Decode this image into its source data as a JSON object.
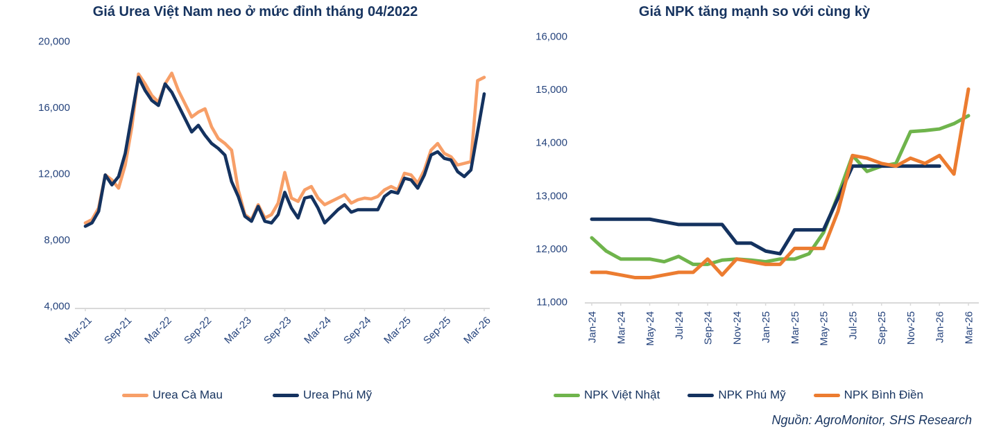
{
  "page": {
    "source_note": "Nguồn: AgroMonitor, SHS Research"
  },
  "colors": {
    "navy": "#14325F",
    "salmon": "#F79F68",
    "orange": "#EC7C30",
    "green": "#6FB44C",
    "axis_line": "#D9D9D9",
    "title_text": "#16335F",
    "axis_text": "#25437C"
  },
  "chart_data": [
    {
      "type": "line",
      "title": "Giá Urea Việt Nam neo ở mức đỉnh tháng 04/2022",
      "x_axis": {
        "start": "Mar-21",
        "end": "Mar-26",
        "frequency": "monthly"
      },
      "x_tick_labels": [
        "Mar-21",
        "Sep-21",
        "Mar-22",
        "Sep-22",
        "Mar-23",
        "Sep-23",
        "Mar-24",
        "Sep-24",
        "Mar-25",
        "Sep-25",
        "Mar-26"
      ],
      "tick_every_months": 6,
      "ylim": [
        4000,
        20000
      ],
      "ytick_step": 4000,
      "ytick_labels": [
        "20,000",
        "16,000",
        "12,000",
        "8,000",
        "4,000"
      ],
      "grid": false,
      "legend_position": "bottom",
      "series": [
        {
          "name": "Urea Cà Mau",
          "color_key": "salmon",
          "values": [
            9000,
            9200,
            9900,
            11900,
            11600,
            11100,
            12500,
            14800,
            18000,
            17400,
            16700,
            16300,
            17400,
            18050,
            17000,
            16200,
            15400,
            15700,
            15900,
            14800,
            14100,
            13800,
            13400,
            11000,
            9500,
            9200,
            10100,
            9300,
            9500,
            10200,
            12050,
            10500,
            10300,
            11000,
            11200,
            10500,
            10100,
            10300,
            10500,
            10700,
            10200,
            10400,
            10500,
            10450,
            10600,
            11000,
            11200,
            11000,
            12000,
            11900,
            11400,
            12200,
            13400,
            13800,
            13200,
            13000,
            12500,
            12600,
            12700,
            17600,
            17800
          ]
        },
        {
          "name": "Urea Phú Mỹ",
          "color_key": "navy",
          "values": [
            8800,
            9000,
            9700,
            11900,
            11300,
            11800,
            13200,
            15500,
            17800,
            17000,
            16400,
            16100,
            17400,
            16900,
            16100,
            15300,
            14500,
            14900,
            14300,
            13800,
            13500,
            13100,
            11500,
            10600,
            9400,
            9100,
            10000,
            9100,
            9000,
            9500,
            10850,
            9900,
            9300,
            10500,
            10600,
            9900,
            9000,
            9400,
            9800,
            10100,
            9650,
            9800,
            9800,
            9800,
            9800,
            10600,
            10900,
            10800,
            11700,
            11600,
            11100,
            11900,
            13100,
            13300,
            12900,
            12800,
            12100,
            11800,
            12200,
            14500,
            16800
          ]
        }
      ]
    },
    {
      "type": "line",
      "title": "Giá NPK tăng mạnh so với cùng kỳ",
      "x_axis": {
        "start": "Jan-24",
        "end": "Mar-26",
        "frequency": "monthly"
      },
      "x_tick_labels": [
        "Jan-24",
        "Mar-24",
        "May-24",
        "Jul-24",
        "Sep-24",
        "Nov-24",
        "Jan-25",
        "Mar-25",
        "May-25",
        "Jul-25",
        "Sep-25",
        "Nov-25",
        "Jan-26",
        "Mar-26"
      ],
      "tick_every_months": 2,
      "ylim": [
        11000,
        16000
      ],
      "ytick_step": 1000,
      "ytick_labels": [
        "16,000",
        "15,000",
        "14,000",
        "13,000",
        "12,000",
        "11,000"
      ],
      "grid": false,
      "legend_position": "bottom",
      "series": [
        {
          "name": "NPK Việt Nhật",
          "color_key": "green",
          "values": [
            12200,
            11950,
            11800,
            11800,
            11800,
            11750,
            11850,
            11700,
            11700,
            11780,
            11800,
            11780,
            11750,
            11800,
            11800,
            11900,
            12300,
            13000,
            13750,
            13450,
            13550,
            13600,
            14200,
            14220,
            14250,
            14350,
            14500
          ]
        },
        {
          "name": "NPK Phú Mỹ",
          "color_key": "navy",
          "values": [
            12550,
            12550,
            12550,
            12550,
            12550,
            12500,
            12450,
            12450,
            12450,
            12450,
            12100,
            12100,
            11950,
            11900,
            12350,
            12350,
            12350,
            12950,
            13550,
            13550,
            13550,
            13550,
            13550,
            13550,
            13550,
            null,
            null
          ]
        },
        {
          "name": "NPK Bình Điền",
          "color_key": "orange",
          "values": [
            11550,
            11550,
            11500,
            11450,
            11450,
            11500,
            11550,
            11550,
            11800,
            11500,
            11800,
            11750,
            11700,
            11700,
            12000,
            12000,
            12000,
            12700,
            13750,
            13700,
            13600,
            13550,
            13700,
            13600,
            13750,
            13400,
            15000
          ]
        }
      ]
    }
  ]
}
